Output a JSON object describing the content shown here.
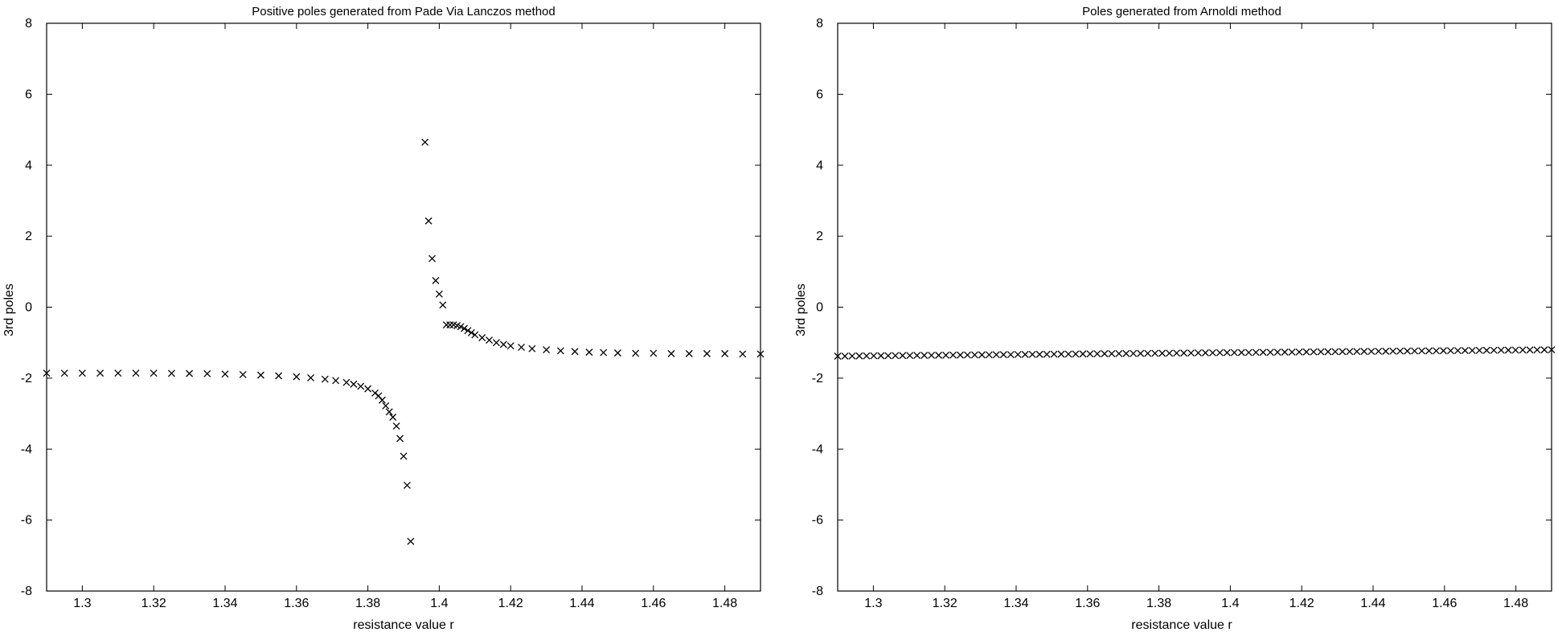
{
  "chart_data": [
    {
      "type": "scatter",
      "title": "Positive poles generated from Pade Via Lanczos method",
      "xlabel": "resistance value r",
      "ylabel": "3rd poles",
      "xlim": [
        1.29,
        1.49
      ],
      "ylim": [
        -8,
        8
      ],
      "xticks": [
        "1.3",
        "1.32",
        "1.34",
        "1.36",
        "1.38",
        "1.4",
        "1.42",
        "1.44",
        "1.46",
        "1.48"
      ],
      "yticks": [
        "-8",
        "-6",
        "-4",
        "-2",
        "0",
        "2",
        "4",
        "6",
        "8"
      ],
      "grid": false,
      "marker": "x",
      "series": [
        {
          "points": [
            [
              1.29,
              -1.86
            ],
            [
              1.295,
              -1.86
            ],
            [
              1.3,
              -1.86
            ],
            [
              1.305,
              -1.86
            ],
            [
              1.31,
              -1.86
            ],
            [
              1.315,
              -1.86
            ],
            [
              1.32,
              -1.86
            ],
            [
              1.325,
              -1.865
            ],
            [
              1.33,
              -1.87
            ],
            [
              1.335,
              -1.875
            ],
            [
              1.34,
              -1.885
            ],
            [
              1.345,
              -1.9
            ],
            [
              1.35,
              -1.915
            ],
            [
              1.355,
              -1.935
            ],
            [
              1.36,
              -1.96
            ],
            [
              1.364,
              -1.99
            ],
            [
              1.368,
              -2.03
            ],
            [
              1.371,
              -2.07
            ],
            [
              1.374,
              -2.12
            ],
            [
              1.376,
              -2.17
            ],
            [
              1.378,
              -2.23
            ],
            [
              1.38,
              -2.3
            ],
            [
              1.382,
              -2.42
            ],
            [
              1.383,
              -2.5
            ],
            [
              1.384,
              -2.62
            ],
            [
              1.385,
              -2.78
            ],
            [
              1.386,
              -2.95
            ],
            [
              1.387,
              -3.1
            ],
            [
              1.388,
              -3.35
            ],
            [
              1.389,
              -3.7
            ],
            [
              1.39,
              -4.2
            ],
            [
              1.391,
              -5.02
            ],
            [
              1.392,
              -6.6
            ],
            [
              1.396,
              4.65
            ],
            [
              1.397,
              2.43
            ],
            [
              1.398,
              1.37
            ],
            [
              1.399,
              0.75
            ],
            [
              1.4,
              0.37
            ],
            [
              1.401,
              0.06
            ],
            [
              1.402,
              -0.5
            ],
            [
              1.403,
              -0.5
            ],
            [
              1.404,
              -0.5
            ],
            [
              1.405,
              -0.52
            ],
            [
              1.406,
              -0.55
            ],
            [
              1.407,
              -0.6
            ],
            [
              1.408,
              -0.66
            ],
            [
              1.409,
              -0.72
            ],
            [
              1.41,
              -0.78
            ],
            [
              1.412,
              -0.86
            ],
            [
              1.414,
              -0.93
            ],
            [
              1.416,
              -1.0
            ],
            [
              1.418,
              -1.05
            ],
            [
              1.42,
              -1.09
            ],
            [
              1.423,
              -1.13
            ],
            [
              1.426,
              -1.17
            ],
            [
              1.43,
              -1.2
            ],
            [
              1.434,
              -1.23
            ],
            [
              1.438,
              -1.25
            ],
            [
              1.442,
              -1.27
            ],
            [
              1.446,
              -1.28
            ],
            [
              1.45,
              -1.29
            ],
            [
              1.455,
              -1.3
            ],
            [
              1.46,
              -1.3
            ],
            [
              1.465,
              -1.31
            ],
            [
              1.47,
              -1.31
            ],
            [
              1.475,
              -1.31
            ],
            [
              1.48,
              -1.31
            ],
            [
              1.485,
              -1.32
            ],
            [
              1.49,
              -1.32
            ]
          ]
        }
      ]
    },
    {
      "type": "scatter",
      "title": "Poles generated from Arnoldi method",
      "xlabel": "resistance value r",
      "ylabel": "3rd poles",
      "xlim": [
        1.29,
        1.49
      ],
      "ylim": [
        -8,
        8
      ],
      "xticks": [
        "1.3",
        "1.32",
        "1.34",
        "1.36",
        "1.38",
        "1.4",
        "1.42",
        "1.44",
        "1.46",
        "1.48"
      ],
      "yticks": [
        "-8",
        "-6",
        "-4",
        "-2",
        "0",
        "2",
        "4",
        "6",
        "8"
      ],
      "grid": false,
      "marker": "x",
      "series": [
        {
          "linear_from": [
            1.29,
            -1.38
          ],
          "linear_to": [
            1.49,
            -1.2
          ],
          "count": 100
        }
      ]
    }
  ]
}
